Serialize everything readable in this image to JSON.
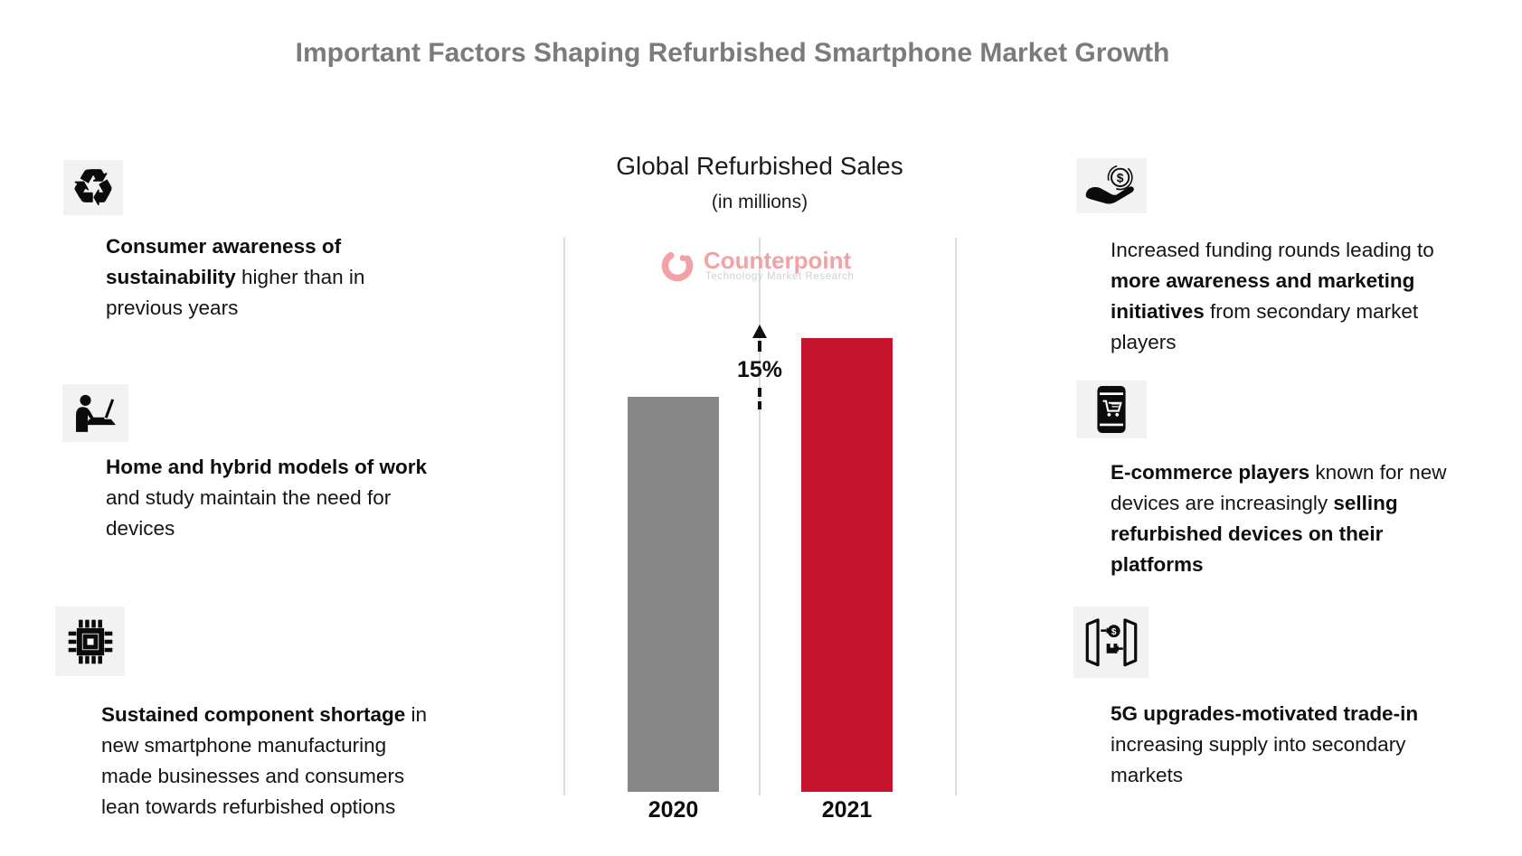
{
  "title": "Important Factors Shaping Refurbished Smartphone Market Growth",
  "factors_left": [
    {
      "icon": "recycle-icon",
      "segments": [
        {
          "text": "Consumer awareness of\nsustainability",
          "bold": true
        },
        {
          "text": " higher than in\nprevious years",
          "bold": false
        }
      ]
    },
    {
      "icon": "remote-work-icon",
      "segments": [
        {
          "text": "Home and hybrid models of work",
          "bold": true
        },
        {
          "text": "\nand study maintain the need for\ndevices",
          "bold": false
        }
      ]
    },
    {
      "icon": "chip-icon",
      "segments": [
        {
          "text": "Sustained component shortage",
          "bold": true
        },
        {
          "text": " in\nnew smartphone manufacturing\nmade businesses and consumers\nlean towards refurbished options",
          "bold": false
        }
      ]
    }
  ],
  "factors_right": [
    {
      "icon": "funding-hand-coin-icon",
      "segments": [
        {
          "text": "Increased funding rounds leading to\n",
          "bold": false
        },
        {
          "text": "more awareness and marketing\ninitiatives",
          "bold": true
        },
        {
          "text": " from secondary market\nplayers",
          "bold": false
        }
      ]
    },
    {
      "icon": "ecommerce-phone-cart-icon",
      "segments": [
        {
          "text": "E-commerce players",
          "bold": true
        },
        {
          "text": " known for new\ndevices are increasingly ",
          "bold": false
        },
        {
          "text": "selling\nrefurbished devices on their\nplatforms",
          "bold": true
        }
      ]
    },
    {
      "icon": "trade-in-icon",
      "segments": [
        {
          "text": "5G upgrades-motivated trade-in",
          "bold": true
        },
        {
          "text": "\nincreasing supply into secondary\nmarkets",
          "bold": false
        }
      ]
    }
  ],
  "chart": {
    "title": "Global Refurbished Sales",
    "subtitle": "(in millions)",
    "growth_label": "15%",
    "watermark": {
      "name": "Counterpoint",
      "tagline": "Technology Market Research"
    }
  },
  "chart_data": {
    "type": "bar",
    "title": "Global Refurbished Sales",
    "subtitle": "(in millions)",
    "categories": [
      "2020",
      "2021"
    ],
    "values": [
      100,
      115
    ],
    "value_basis": "relative index; no numeric axis shown — 2021 bar is 15% taller than 2020 per annotation",
    "annotations": [
      {
        "text": "15%",
        "meaning": "growth from 2020 to 2021, dashed up-arrow between bars"
      }
    ],
    "bar_colors": [
      "#878787",
      "#c6132e"
    ],
    "grid": {
      "vertical_lines": 3,
      "color": "#dddddd"
    },
    "legend": "none",
    "xlabel": "",
    "ylabel": ""
  },
  "colors": {
    "title_gray": "#7b7b7b",
    "bar_gray": "#878787",
    "bar_red": "#c6132e",
    "logo_pink": "#f2a2a5",
    "logo_tagline_gray": "#d8cecb",
    "icon_background": "#f2f2f2",
    "gridline_gray": "#dddddd",
    "text_black": "#151515"
  }
}
